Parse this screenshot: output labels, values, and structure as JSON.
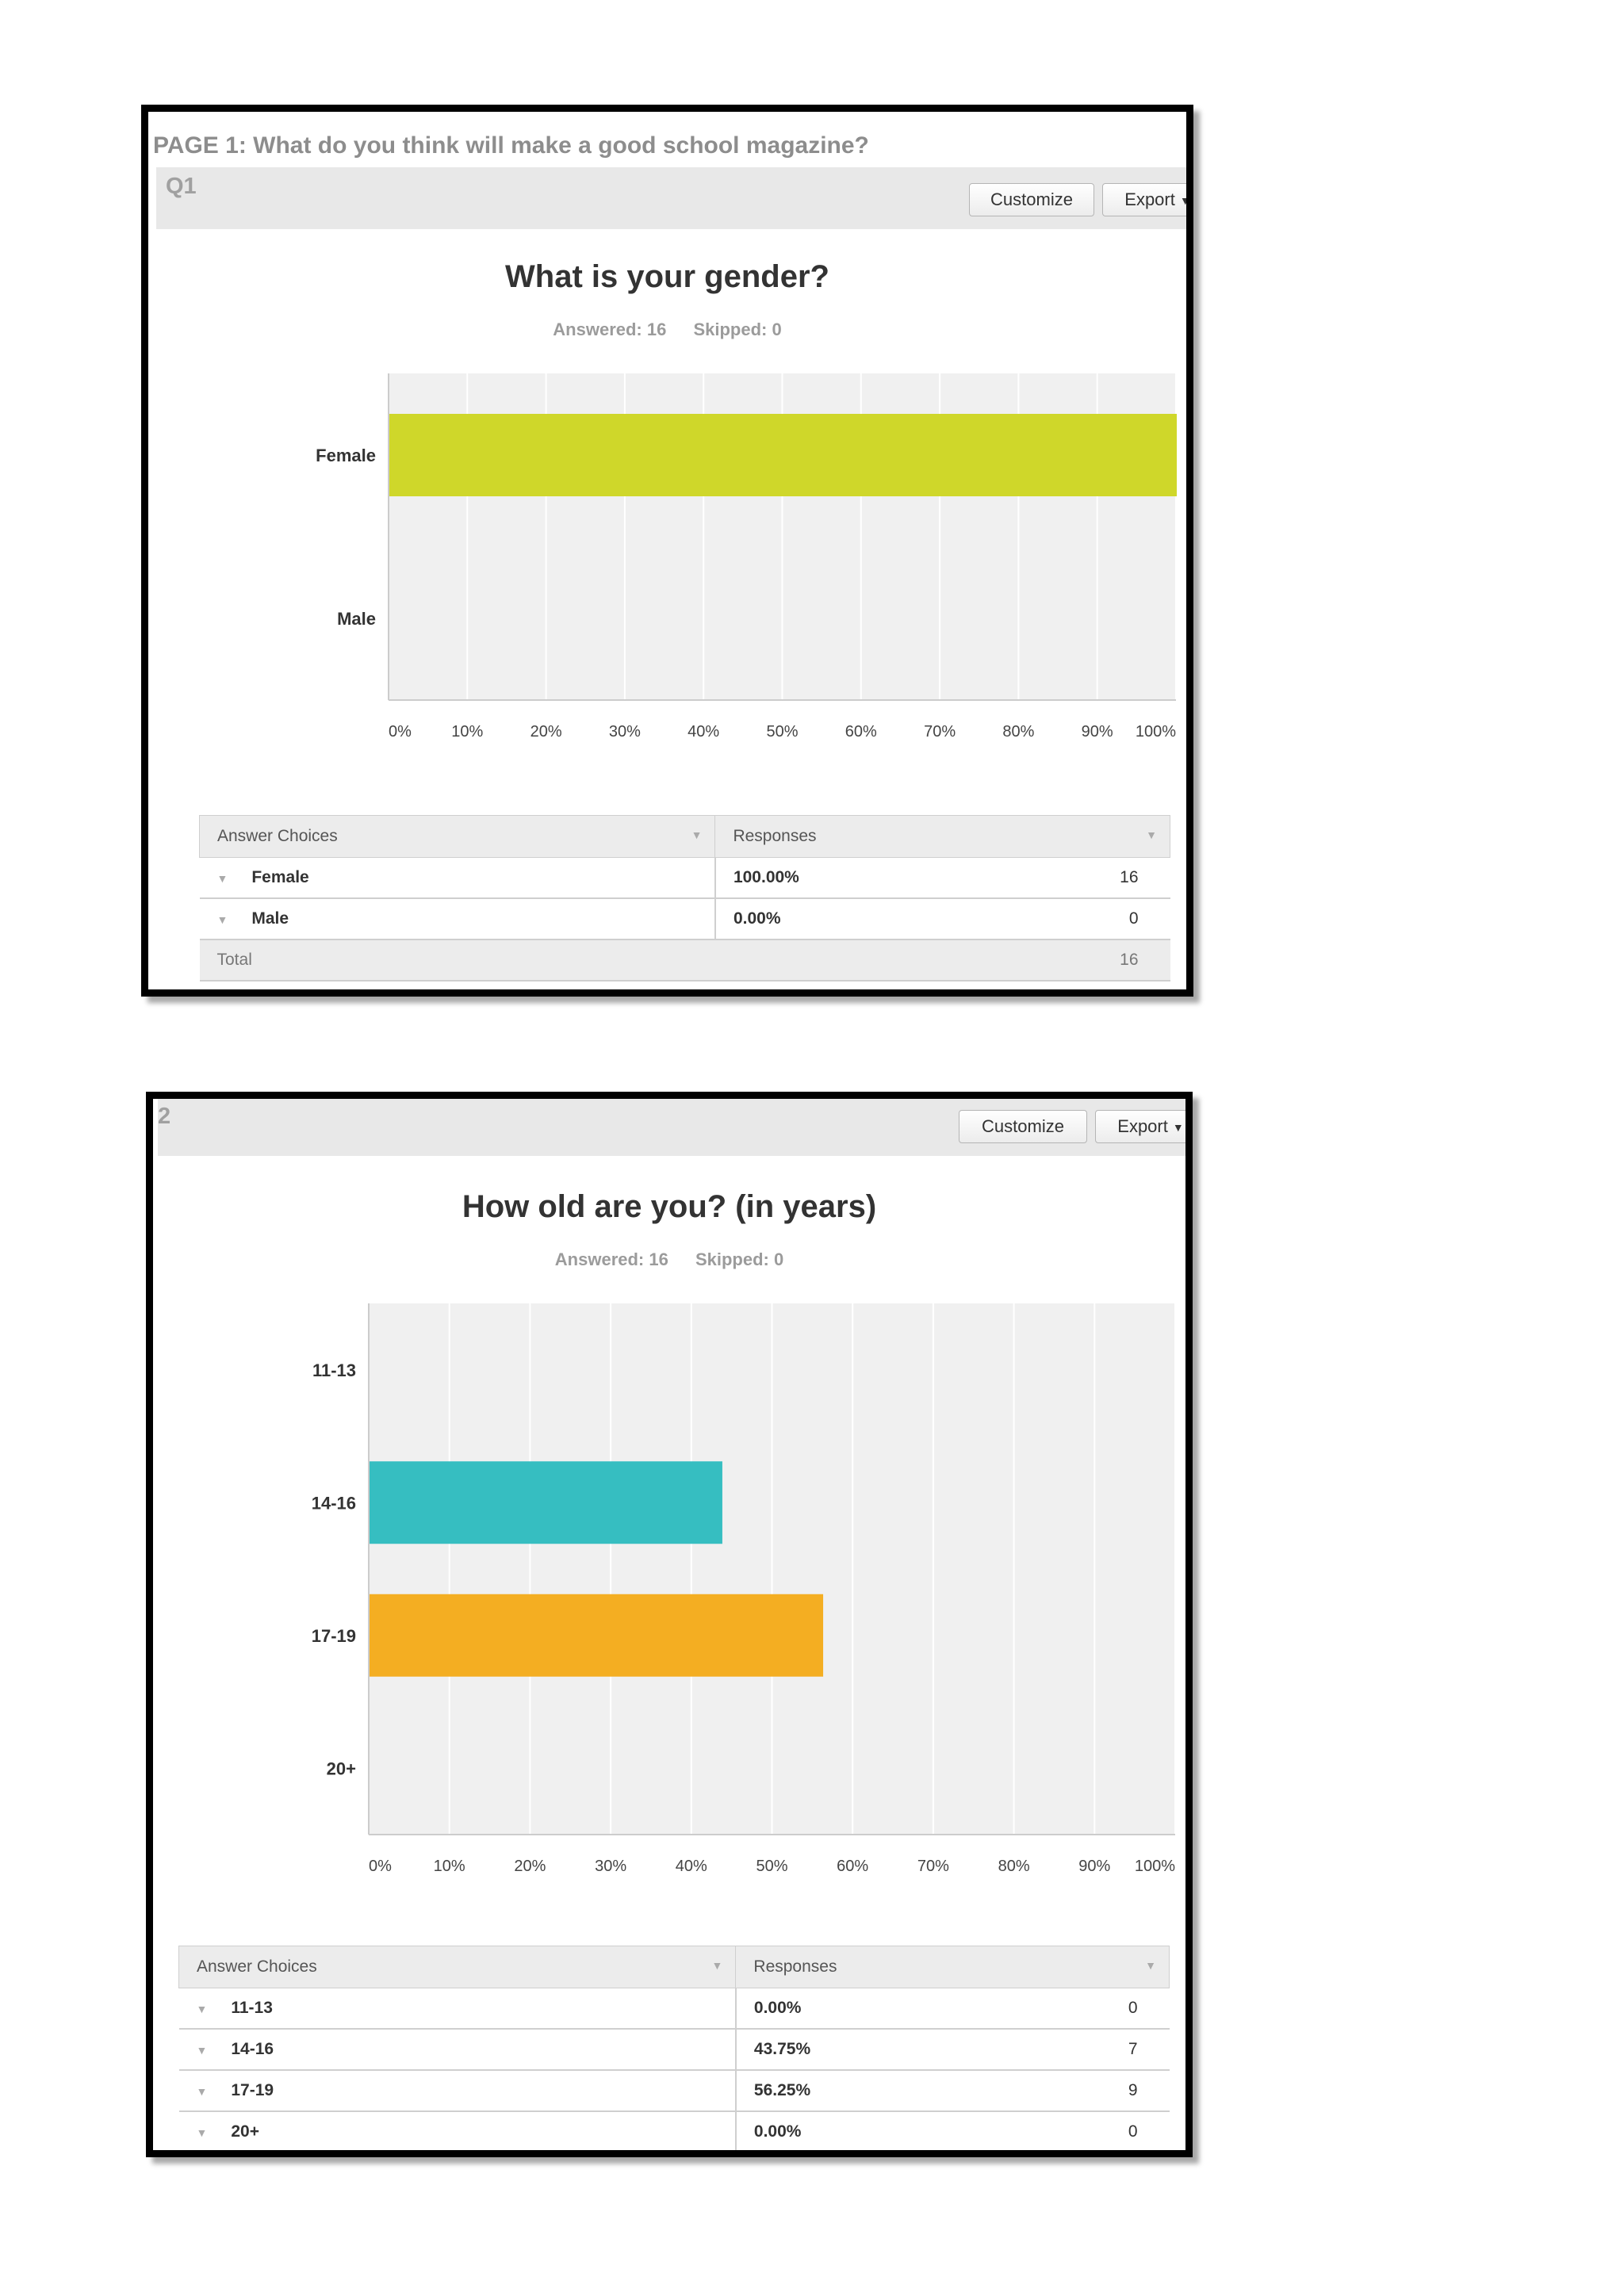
{
  "page_title": "PAGE 1: What do you think will make a good school magazine?",
  "buttons": {
    "customize": "Customize",
    "export": "Export"
  },
  "q1": {
    "label": "Q1",
    "title": "What is your gender?",
    "answered": "Answered: 16",
    "skipped": "Skipped: 0",
    "table": {
      "col_choices": "Answer Choices",
      "col_responses": "Responses",
      "rows": [
        {
          "choice": "Female",
          "pct": "100.00%",
          "count": "16"
        },
        {
          "choice": "Male",
          "pct": "0.00%",
          "count": "0"
        }
      ],
      "total_label": "Total",
      "total_count": "16"
    }
  },
  "q2": {
    "label": "2",
    "title": "How old are you? (in years)",
    "answered": "Answered: 16",
    "skipped": "Skipped: 0",
    "table": {
      "col_choices": "Answer Choices",
      "col_responses": "Responses",
      "rows": [
        {
          "choice": "11-13",
          "pct": "0.00%",
          "count": "0"
        },
        {
          "choice": "14-16",
          "pct": "43.75%",
          "count": "7"
        },
        {
          "choice": "17-19",
          "pct": "56.25%",
          "count": "9"
        },
        {
          "choice": "20+",
          "pct": "0.00%",
          "count": "0"
        }
      ]
    }
  },
  "colors": {
    "q1_bar": "#cfd72a",
    "q2_bar_1": "#36bec1",
    "q2_bar_2": "#f4ae22"
  },
  "chart_data": [
    {
      "type": "bar",
      "orientation": "horizontal",
      "title": "What is your gender?",
      "categories": [
        "Female",
        "Male"
      ],
      "values": [
        100,
        0
      ],
      "xlim": [
        0,
        100
      ],
      "xticks": [
        "0%",
        "10%",
        "20%",
        "30%",
        "40%",
        "50%",
        "60%",
        "70%",
        "80%",
        "90%",
        "100%"
      ],
      "grid": true
    },
    {
      "type": "bar",
      "orientation": "horizontal",
      "title": "How old are you? (in years)",
      "categories": [
        "11-13",
        "14-16",
        "17-19",
        "20+"
      ],
      "values": [
        0,
        43.75,
        56.25,
        0
      ],
      "xlim": [
        0,
        100
      ],
      "xticks": [
        "0%",
        "10%",
        "20%",
        "30%",
        "40%",
        "50%",
        "60%",
        "70%",
        "80%",
        "90%",
        "100%"
      ],
      "grid": true
    }
  ]
}
